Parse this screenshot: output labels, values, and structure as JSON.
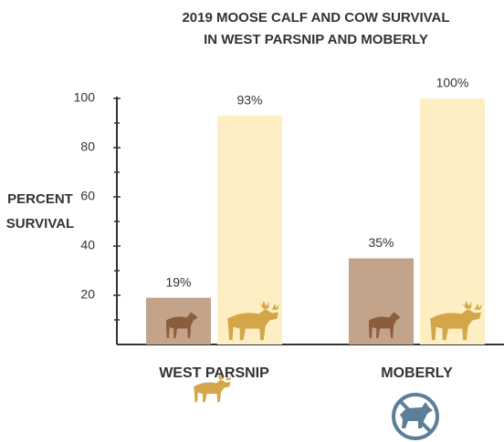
{
  "chart_data": {
    "type": "bar",
    "title_lines": [
      "2019 MOOSE CALF AND COW SURVIVAL",
      "IN WEST PARSNIP AND MOBERLY"
    ],
    "y_label_lines": [
      "PERCENT",
      "SURVIVAL"
    ],
    "categories": [
      "WEST PARSNIP",
      "MOBERLY"
    ],
    "category_colors": [
      "#c9a24a",
      "#5b7f99"
    ],
    "series": [
      {
        "color": "#c4a38b",
        "values": [
          19,
          35
        ],
        "value_labels": [
          "19%",
          "35%"
        ]
      },
      {
        "color": "#fdefc3",
        "values": [
          93,
          100
        ],
        "value_labels": [
          "93%",
          "100%"
        ]
      }
    ],
    "ylim": [
      0,
      100
    ],
    "yticks": [
      20,
      40,
      60,
      80,
      100
    ],
    "yticks_minor": [
      10,
      30,
      50,
      70,
      90
    ]
  }
}
